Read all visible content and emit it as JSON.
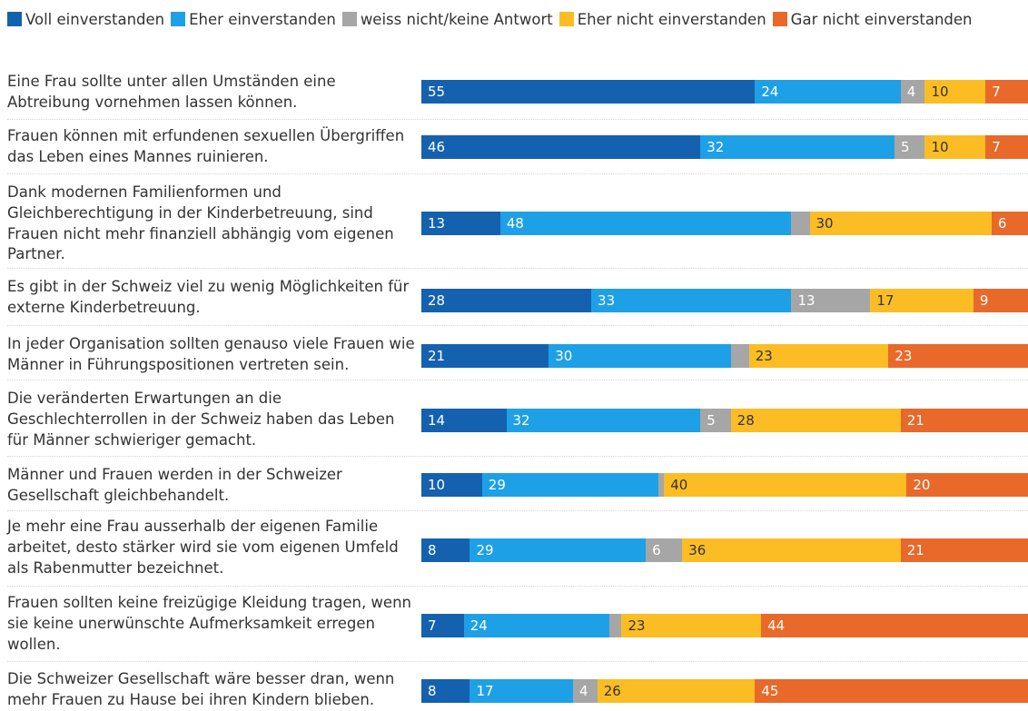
{
  "chart_data": {
    "type": "bar",
    "orientation": "horizontal",
    "stacked": true,
    "legend_position": "top",
    "grid": false,
    "xlim": [
      0,
      100
    ],
    "series": [
      {
        "name": "Voll einverstanden",
        "color": "#1461b0",
        "label_color": "#ffffff",
        "values": [
          55,
          46,
          13,
          28,
          21,
          14,
          10,
          8,
          7,
          8
        ],
        "labels": [
          "55",
          "46",
          "13",
          "28",
          "21",
          "14",
          "10",
          "8",
          "7",
          "8"
        ]
      },
      {
        "name": "Eher einverstanden",
        "color": "#1ea0e6",
        "label_color": "#ffffff",
        "values": [
          24,
          32,
          48,
          33,
          30,
          32,
          29,
          29,
          24,
          17
        ],
        "labels": [
          "24",
          "32",
          "48",
          "33",
          "30",
          "32",
          "29",
          "29",
          "24",
          "17"
        ]
      },
      {
        "name": "weiss nicht/keine Antwort",
        "color": "#a6a6a6",
        "label_color": "#ffffff",
        "values": [
          4,
          5,
          3,
          13,
          3,
          5,
          1,
          6,
          2,
          4
        ],
        "labels": [
          "4",
          "5",
          "",
          "13",
          "",
          "5",
          "",
          "6",
          "",
          "4"
        ]
      },
      {
        "name": "Eher nicht einverstanden",
        "color": "#fbbd23",
        "label_color": "#333333",
        "values": [
          10,
          10,
          30,
          17,
          23,
          28,
          40,
          36,
          23,
          26
        ],
        "labels": [
          "10",
          "10",
          "30",
          "17",
          "23",
          "28",
          "40",
          "36",
          "23",
          "26"
        ]
      },
      {
        "name": "Gar nicht einverstanden",
        "color": "#e8692a",
        "label_color": "#ffffff",
        "values": [
          7,
          7,
          6,
          9,
          23,
          21,
          20,
          21,
          44,
          45
        ],
        "labels": [
          "7",
          "7",
          "6",
          "9",
          "23",
          "21",
          "20",
          "21",
          "44",
          "45"
        ]
      }
    ],
    "categories": [
      "Eine Frau sollte unter allen Umständen eine Abtreibung vornehmen lassen können.",
      "Frauen können mit erfundenen sexuellen Übergriffen das Leben eines Mannes ruinieren.",
      "Dank modernen Familienformen und Gleichberechtigung in der Kinderbetreuung, sind Frauen nicht mehr finanziell abhängig vom eigenen Partner.",
      "Es gibt in der Schweiz viel zu wenig Möglichkeiten für externe Kinderbetreuung.",
      "In jeder Organisation sollten genauso viele Frauen wie Männer in Führungspositionen vertreten sein.",
      "Die veränderten Erwartungen an die Geschlechterrollen in der Schweiz haben das Leben für Männer schwieriger gemacht.",
      "Männer und Frauen werden in der Schweizer Gesellschaft gleichbehandelt.",
      "Je mehr eine Frau ausserhalb der eigenen Familie arbeitet, desto stärker wird sie vom eigenen Umfeld als Rabenmutter bezeichnet.",
      "Frauen sollten keine freizügige Kleidung tragen, wenn sie keine unerwünschte Aufmerksamkeit erregen wollen.",
      "Die Schweizer Gesellschaft wäre besser dran, wenn mehr Frauen zu Hause bei ihren Kindern blieben."
    ]
  }
}
